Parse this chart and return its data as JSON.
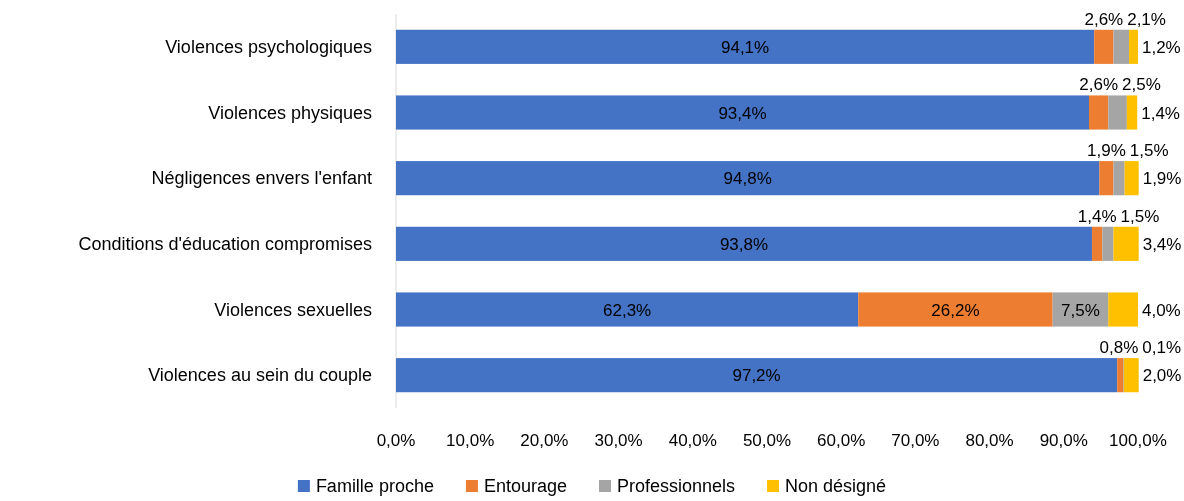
{
  "chart_data": {
    "type": "bar",
    "orientation": "horizontal",
    "stacked": true,
    "categories": [
      "Violences psychologiques",
      "Violences physiques",
      "Négligences envers l'enfant",
      "Conditions d'éducation compromises",
      "Violences sexuelles",
      "Violences au sein du couple"
    ],
    "series": [
      {
        "name": "Famille proche",
        "color": "#4472c4",
        "values": [
          94.1,
          93.4,
          94.8,
          93.8,
          62.3,
          97.2
        ],
        "value_labels": [
          "94,1%",
          "93,4%",
          "94,8%",
          "93,8%",
          "62,3%",
          "97,2%"
        ]
      },
      {
        "name": "Entourage",
        "color": "#ed7d31",
        "values": [
          2.6,
          2.6,
          1.9,
          1.4,
          26.2,
          0.8
        ],
        "value_labels": [
          "2,6%",
          "2,6%",
          "1,9%",
          "1,4%",
          "26,2%",
          "0,8%"
        ]
      },
      {
        "name": "Professionnels",
        "color": "#a5a5a5",
        "values": [
          2.1,
          2.5,
          1.5,
          1.5,
          7.5,
          0.1
        ],
        "value_labels": [
          "2,1%",
          "2,5%",
          "1,5%",
          "1,5%",
          "7,5%",
          "0,1%"
        ]
      },
      {
        "name": "Non désigné",
        "color": "#ffc000",
        "values": [
          1.2,
          1.4,
          1.9,
          3.4,
          4.0,
          2.0
        ],
        "value_labels": [
          "1,2%",
          "1,4%",
          "1,9%",
          "3,4%",
          "4,0%",
          "2,0%"
        ]
      }
    ],
    "xlim": [
      0,
      100.1
    ],
    "xticks": [
      {
        "value": 0,
        "label": "0,0%"
      },
      {
        "value": 10,
        "label": "10,0%"
      },
      {
        "value": 20,
        "label": "20,0%"
      },
      {
        "value": 30,
        "label": "30,0%"
      },
      {
        "value": 40,
        "label": "40,0%"
      },
      {
        "value": 50,
        "label": "50,0%"
      },
      {
        "value": 60,
        "label": "60,0%"
      },
      {
        "value": 70,
        "label": "70,0%"
      },
      {
        "value": 80,
        "label": "80,0%"
      },
      {
        "value": 90,
        "label": "90,0%"
      },
      {
        "value": 100,
        "label": "100,0%"
      }
    ],
    "legend": "bottom"
  }
}
